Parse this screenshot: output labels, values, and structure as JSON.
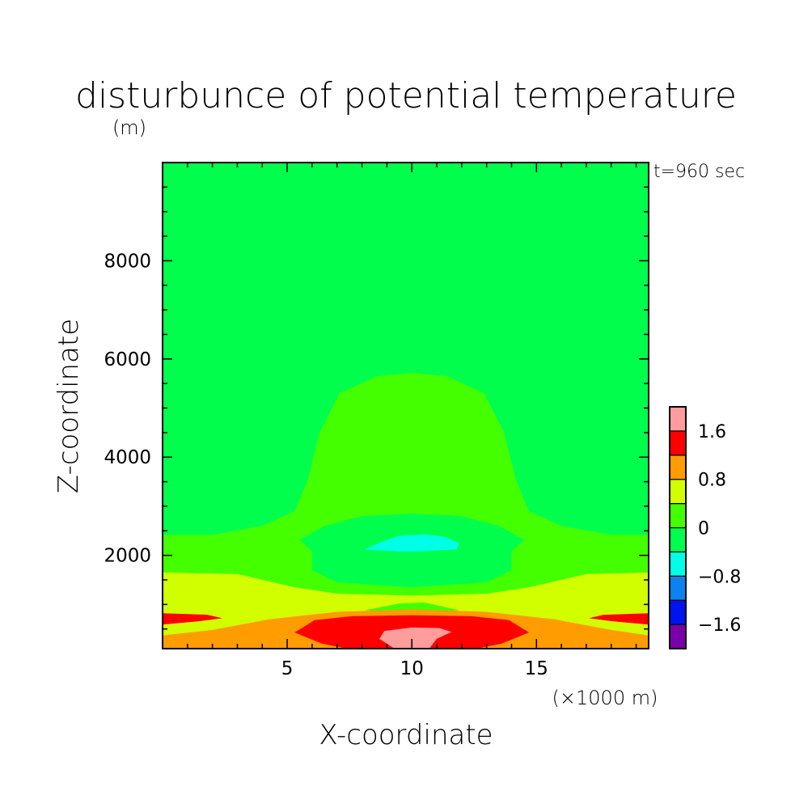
{
  "chart_data": {
    "type": "heatmap",
    "title": "disturbunce of potential temperature",
    "title_unit": "(m)",
    "time_label": "t=960 sec",
    "xlabel": "X-coordinate",
    "x_unit": "(×1000 m)",
    "ylabel": "Z-coordinate",
    "xlim": [
      0,
      19.5
    ],
    "ylim": [
      100,
      10000
    ],
    "x_ticks": [
      {
        "value": 5,
        "label": "5"
      },
      {
        "value": 10,
        "label": "10"
      },
      {
        "value": 15,
        "label": "15"
      }
    ],
    "y_ticks": [
      {
        "value": 2000,
        "label": "2000"
      },
      {
        "value": 4000,
        "label": "4000"
      },
      {
        "value": 6000,
        "label": "6000"
      },
      {
        "value": 8000,
        "label": "8000"
      }
    ],
    "levels": [
      -2.0,
      -1.6,
      -1.2,
      -0.8,
      -0.4,
      0,
      0.4,
      0.8,
      1.2,
      1.6,
      2.0
    ],
    "colorbar_ticks": [
      {
        "value": 1.6,
        "label": "1.6"
      },
      {
        "value": 0.8,
        "label": "0.8"
      },
      {
        "value": 0,
        "label": "0"
      },
      {
        "value": -0.8,
        "label": "−0.8"
      },
      {
        "value": -1.6,
        "label": "−1.6"
      }
    ],
    "colors": {
      "-2.0_-1.6": "#7a00a8",
      "-1.6_-1.2": "#0014f0",
      "-1.2_-0.8": "#0a82f0",
      "-0.8_-0.4": "#00ffe6",
      "-0.4_0": "#00ff4c",
      "0_0.4": "#44ff00",
      "0.4_0.8": "#d2ff00",
      "0.8_1.2": "#ff9c00",
      "1.2_1.6": "#ff0000",
      "1.6_2.0": "#ff9c9c"
    },
    "background_range": [
      -0.4,
      0
    ],
    "regions": [
      {
        "range": [
          0,
          0.4
        ],
        "color": "#44ff00",
        "polygon": [
          [
            0,
            100
          ],
          [
            0,
            2420
          ],
          [
            2,
            2420
          ],
          [
            4,
            2600
          ],
          [
            5.3,
            2900
          ],
          [
            5.8,
            3500
          ],
          [
            6.3,
            4500
          ],
          [
            7.1,
            5300
          ],
          [
            8.6,
            5650
          ],
          [
            10,
            5720
          ],
          [
            11.4,
            5650
          ],
          [
            12.9,
            5300
          ],
          [
            13.7,
            4500
          ],
          [
            14.2,
            3500
          ],
          [
            14.7,
            2900
          ],
          [
            16,
            2600
          ],
          [
            18,
            2420
          ],
          [
            19.5,
            2420
          ],
          [
            19.5,
            100
          ]
        ]
      },
      {
        "range": [
          -0.4,
          0
        ],
        "color": "#00ff4c",
        "polygon": [
          [
            5.5,
            2320
          ],
          [
            6.5,
            2600
          ],
          [
            8,
            2800
          ],
          [
            10,
            2850
          ],
          [
            12,
            2800
          ],
          [
            13.5,
            2600
          ],
          [
            14.5,
            2320
          ],
          [
            14,
            2080
          ],
          [
            14,
            1700
          ],
          [
            13,
            1450
          ],
          [
            10,
            1350
          ],
          [
            7,
            1450
          ],
          [
            6,
            1700
          ],
          [
            6,
            2080
          ]
        ]
      },
      {
        "range": [
          -0.8,
          -0.4
        ],
        "color": "#00ffe6",
        "polygon": [
          [
            8.1,
            2120
          ],
          [
            8.8,
            2280
          ],
          [
            9.5,
            2400
          ],
          [
            10.5,
            2430
          ],
          [
            11.3,
            2380
          ],
          [
            11.9,
            2250
          ],
          [
            11.8,
            2120
          ],
          [
            10.4,
            2080
          ],
          [
            9.5,
            2080
          ]
        ]
      },
      {
        "range": [
          0.4,
          0.8
        ],
        "color": "#d2ff00",
        "polygon": [
          [
            0,
            100
          ],
          [
            0,
            1650
          ],
          [
            3,
            1620
          ],
          [
            5.3,
            1350
          ],
          [
            7,
            1220
          ],
          [
            10,
            1180
          ],
          [
            13,
            1220
          ],
          [
            14.7,
            1350
          ],
          [
            17,
            1620
          ],
          [
            19.5,
            1650
          ],
          [
            19.5,
            100
          ]
        ]
      },
      {
        "range": [
          0,
          0.4
        ],
        "color": "#44ff00",
        "polygon": [
          [
            8.1,
            880
          ],
          [
            9.5,
            1020
          ],
          [
            10.5,
            1040
          ],
          [
            11.9,
            880
          ],
          [
            10,
            830
          ]
        ]
      },
      {
        "range": [
          0.8,
          1.2
        ],
        "color": "#ff9c00",
        "polygon": [
          [
            0,
            370
          ],
          [
            2,
            480
          ],
          [
            4.3,
            700
          ],
          [
            7,
            850
          ],
          [
            10,
            900
          ],
          [
            13,
            850
          ],
          [
            15.7,
            700
          ],
          [
            18,
            480
          ],
          [
            19.5,
            370
          ],
          [
            19.5,
            100
          ],
          [
            0,
            100
          ]
        ]
      },
      {
        "range": [
          1.2,
          1.6
        ],
        "color": "#ff0000",
        "polygon": [
          [
            0,
            590
          ],
          [
            1.5,
            660
          ],
          [
            2.4,
            720
          ],
          [
            1.8,
            790
          ],
          [
            0,
            820
          ]
        ]
      },
      {
        "range": [
          1.2,
          1.6
        ],
        "color": "#ff0000",
        "polygon": [
          [
            19.5,
            590
          ],
          [
            18,
            660
          ],
          [
            17.1,
            720
          ],
          [
            17.7,
            790
          ],
          [
            19.5,
            820
          ]
        ]
      },
      {
        "range": [
          1.2,
          1.6
        ],
        "color": "#ff0000",
        "polygon": [
          [
            5.3,
            430
          ],
          [
            6.1,
            680
          ],
          [
            7.6,
            760
          ],
          [
            10,
            780
          ],
          [
            12.4,
            760
          ],
          [
            13.9,
            680
          ],
          [
            14.7,
            430
          ],
          [
            13.6,
            200
          ],
          [
            12.6,
            100
          ],
          [
            7.4,
            100
          ],
          [
            6.4,
            200
          ]
        ]
      },
      {
        "range": [
          1.6,
          2.0
        ],
        "color": "#ff9c9c",
        "polygon": [
          [
            8.7,
            300
          ],
          [
            8.9,
            460
          ],
          [
            10,
            530
          ],
          [
            11.1,
            520
          ],
          [
            11.6,
            440
          ],
          [
            11,
            300
          ],
          [
            10.7,
            100
          ],
          [
            9.3,
            100
          ]
        ]
      }
    ]
  }
}
